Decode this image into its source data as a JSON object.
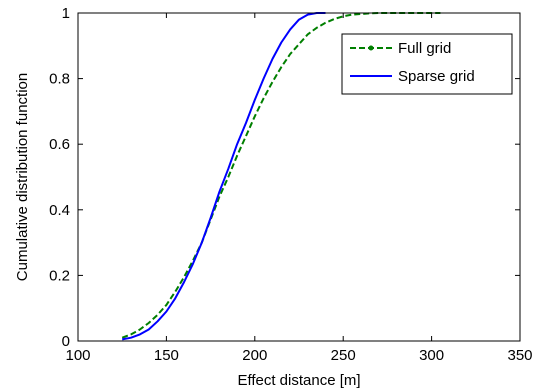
{
  "chart_data": {
    "type": "line",
    "title": "",
    "xlabel": "Effect distance [m]",
    "ylabel": "Cumulative distribution function",
    "xlim": [
      100,
      350
    ],
    "ylim": [
      0,
      1
    ],
    "xticks": [
      100,
      150,
      200,
      250,
      300,
      350
    ],
    "yticks": [
      0,
      0.2,
      0.4,
      0.6,
      0.8,
      1
    ],
    "ytick_labels": [
      "0",
      "0.2",
      "0.4",
      "0.6",
      "0.8",
      "1"
    ],
    "grid": false,
    "legend_position": "top-right",
    "series": [
      {
        "name": "Full grid",
        "color": "#007f00",
        "style": "dashed-dot-marker",
        "x": [
          125,
          130,
          135,
          140,
          145,
          150,
          155,
          160,
          165,
          170,
          175,
          180,
          185,
          190,
          195,
          200,
          205,
          210,
          215,
          220,
          225,
          230,
          235,
          240,
          245,
          250,
          255,
          260,
          265,
          270,
          275,
          280,
          290,
          300,
          305
        ],
        "y": [
          0.01,
          0.02,
          0.035,
          0.055,
          0.08,
          0.11,
          0.15,
          0.195,
          0.245,
          0.3,
          0.37,
          0.44,
          0.5,
          0.565,
          0.625,
          0.685,
          0.74,
          0.79,
          0.835,
          0.875,
          0.905,
          0.935,
          0.955,
          0.97,
          0.982,
          0.99,
          0.995,
          0.997,
          0.999,
          1.0,
          1.0,
          1.0,
          1.0,
          1.0,
          1.0
        ]
      },
      {
        "name": "Sparse grid",
        "color": "#0000ff",
        "style": "solid",
        "x": [
          125,
          130,
          135,
          140,
          145,
          150,
          155,
          160,
          165,
          170,
          175,
          180,
          185,
          190,
          195,
          200,
          205,
          210,
          215,
          220,
          225,
          230,
          235,
          240
        ],
        "y": [
          0.005,
          0.01,
          0.02,
          0.035,
          0.06,
          0.09,
          0.13,
          0.18,
          0.235,
          0.3,
          0.375,
          0.455,
          0.525,
          0.6,
          0.665,
          0.735,
          0.8,
          0.86,
          0.91,
          0.95,
          0.98,
          0.995,
          1.0,
          1.0
        ]
      }
    ]
  }
}
